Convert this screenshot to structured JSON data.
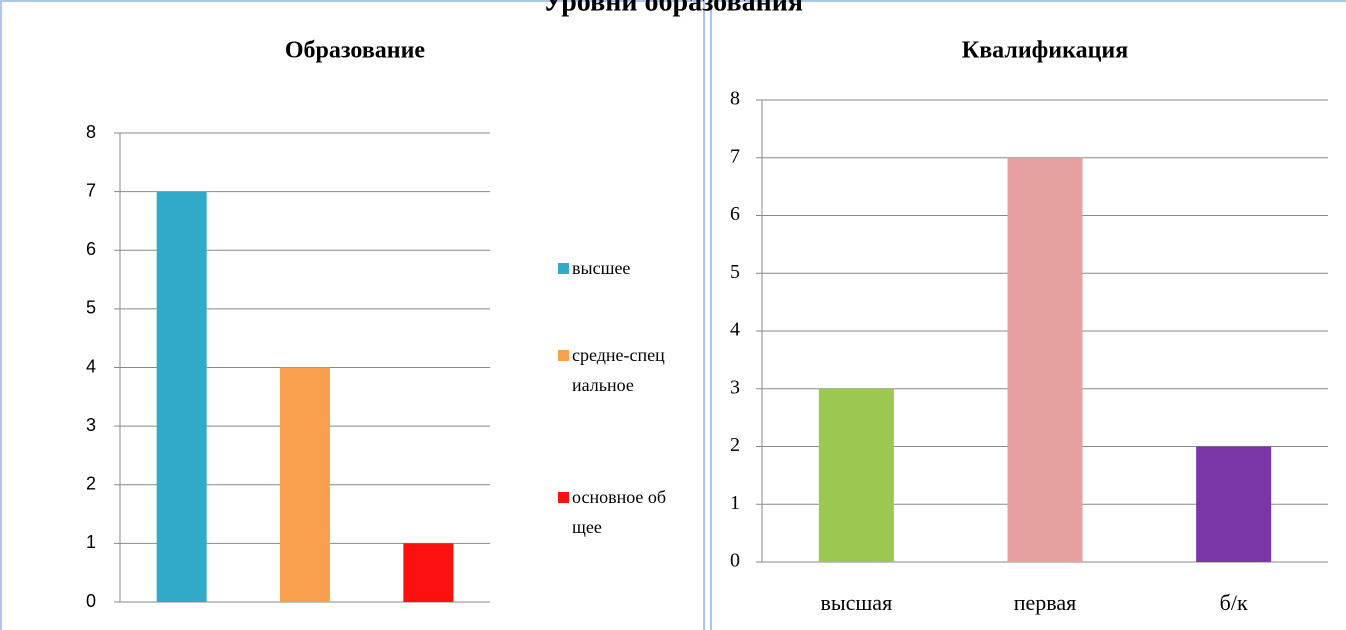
{
  "title": "Уровни образования",
  "chart_data": [
    {
      "type": "bar",
      "title": "Образование",
      "categories": [
        "высшее",
        "средне-специальное",
        "основное общее"
      ],
      "values": [
        7,
        4,
        1
      ],
      "colors": [
        "#31a9c8",
        "#f9a04e",
        "#ff1010"
      ],
      "ylim": [
        0,
        8
      ],
      "yticks": [
        0,
        1,
        2,
        3,
        4,
        5,
        6,
        7,
        8
      ],
      "grid": true,
      "legend": "right"
    },
    {
      "type": "bar",
      "title": "Квалификация",
      "categories": [
        "высшая",
        "первая",
        "б/к"
      ],
      "values": [
        3,
        7,
        2
      ],
      "colors": [
        "#9bc850",
        "#e6a0a0",
        "#7a35a8"
      ],
      "ylim": [
        0,
        8
      ],
      "yticks": [
        0,
        1,
        2,
        3,
        4,
        5,
        6,
        7,
        8
      ],
      "grid": true
    }
  ]
}
